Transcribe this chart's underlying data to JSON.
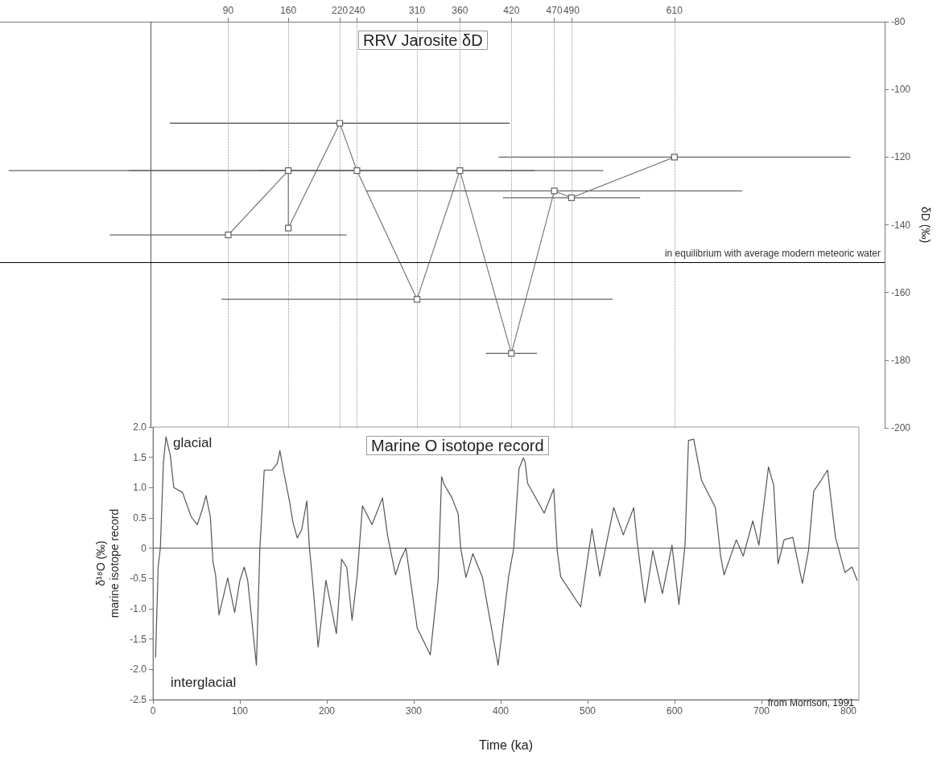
{
  "chart_data": [
    {
      "type": "line",
      "title": "RRV Jarosite δD",
      "ylabel": "δD (‰)",
      "xlim": [
        -176,
        855
      ],
      "xticks": [
        90,
        160,
        220,
        240,
        310,
        360,
        420,
        470,
        490,
        610
      ],
      "ylim": [
        -200,
        -80
      ],
      "yticks": [
        -200,
        -180,
        -160,
        -140,
        -120,
        -100,
        -80
      ],
      "grid": "x",
      "marker": "square",
      "line_style": "dotted",
      "series": [
        {
          "color": "#666666",
          "x": [
            90,
            160,
            160,
            220,
            240,
            310,
            360,
            420,
            470,
            490,
            610
          ],
          "values": [
            -143,
            -124,
            -141,
            -110,
            -124,
            -162,
            -124,
            -178,
            -130,
            -132,
            -120
          ],
          "xerrors": [
            138,
            [
              -166,
              447
            ],
            null,
            198,
            [
              125,
              328
            ],
            228,
            [
              -26,
              527
            ],
            30,
            219,
            80,
            205
          ]
        }
      ],
      "ref_lines": [
        {
          "axis": "y",
          "value": -151,
          "label": "in equilibrium with average modern meteoric water",
          "color": "#000000"
        }
      ]
    },
    {
      "type": "line",
      "title": "Marine O isotope record",
      "xlabel": "Time (ka)",
      "ylabel": "δ¹⁸O (‰)\nmarine isotope record",
      "xlim": [
        0,
        812
      ],
      "xticks": [
        0,
        100,
        200,
        300,
        400,
        500,
        600,
        700,
        800
      ],
      "ylim": [
        -2.5,
        2
      ],
      "yticks": [
        -2.5,
        {
          "value": -2,
          "label": "-2.0"
        },
        -1.5,
        {
          "value": -1,
          "label": "-1.0"
        },
        -0.5,
        0,
        0.5,
        {
          "value": 1,
          "label": "1.0"
        },
        1.5,
        {
          "value": 2,
          "label": "2.0"
        }
      ],
      "color": "#555555",
      "x": [
        3,
        6,
        8.5,
        12,
        15,
        20,
        24,
        34,
        44,
        51,
        57,
        61,
        66,
        69,
        72,
        76,
        86,
        94,
        100,
        105,
        109,
        119,
        123,
        128,
        137,
        143,
        146,
        151,
        157,
        161,
        166,
        171,
        177,
        180,
        183,
        190,
        199,
        211,
        217,
        223,
        229,
        235,
        241,
        252,
        264,
        270,
        279,
        285,
        291,
        304,
        319,
        328,
        332,
        335,
        344,
        351,
        354,
        360,
        368,
        379,
        397,
        409,
        415,
        421,
        426,
        428,
        431,
        450,
        461,
        465,
        469,
        492,
        497,
        505,
        514,
        530,
        541,
        553,
        557,
        563,
        566,
        575,
        586,
        597,
        605,
        612,
        616,
        622,
        631,
        647,
        653,
        657,
        671,
        679,
        690,
        697,
        708,
        714,
        719,
        726,
        736,
        747,
        754,
        760,
        768,
        776,
        785,
        796,
        804,
        810
      ],
      "values": [
        -1.8,
        -0.31,
        0,
        1.4,
        1.84,
        1.53,
        1.0,
        0.92,
        0.52,
        0.39,
        0.65,
        0.87,
        0.52,
        -0.22,
        -0.44,
        -1.1,
        -0.49,
        -1.06,
        -0.53,
        -0.31,
        -0.53,
        -1.93,
        0,
        1.29,
        1.29,
        1.4,
        1.61,
        1.22,
        0.78,
        0.43,
        0.17,
        0.3,
        0.78,
        0,
        -0.44,
        -1.63,
        -0.53,
        -1.41,
        -0.18,
        -0.32,
        -1.19,
        -0.44,
        0.7,
        0.39,
        0.83,
        0.2,
        -0.44,
        -0.18,
        0,
        -1.32,
        -1.76,
        -0.53,
        1.18,
        1.05,
        0.83,
        0.57,
        0,
        -0.48,
        -0.09,
        -0.48,
        -1.93,
        -0.48,
        0,
        1.31,
        1.49,
        1.43,
        1.07,
        0.58,
        0.98,
        -0.04,
        -0.47,
        -0.97,
        -0.47,
        0.32,
        -0.46,
        0.67,
        0.22,
        0.67,
        0.1,
        -0.58,
        -0.9,
        -0.04,
        -0.75,
        0.05,
        -0.93,
        0.05,
        1.78,
        1.8,
        1.12,
        0.67,
        -0.13,
        -0.44,
        0.14,
        -0.13,
        0.45,
        0.05,
        1.34,
        1.04,
        -0.26,
        0.14,
        0.18,
        -0.58,
        -0.04,
        0.94,
        1.11,
        1.29,
        0.18,
        -0.4,
        -0.31,
        -0.53
      ],
      "ref_lines": [
        {
          "axis": "y",
          "value": 0,
          "color": "#555555"
        }
      ],
      "annotations": [
        "glacial",
        "interglacial",
        "from Morrison, 1991"
      ]
    }
  ]
}
